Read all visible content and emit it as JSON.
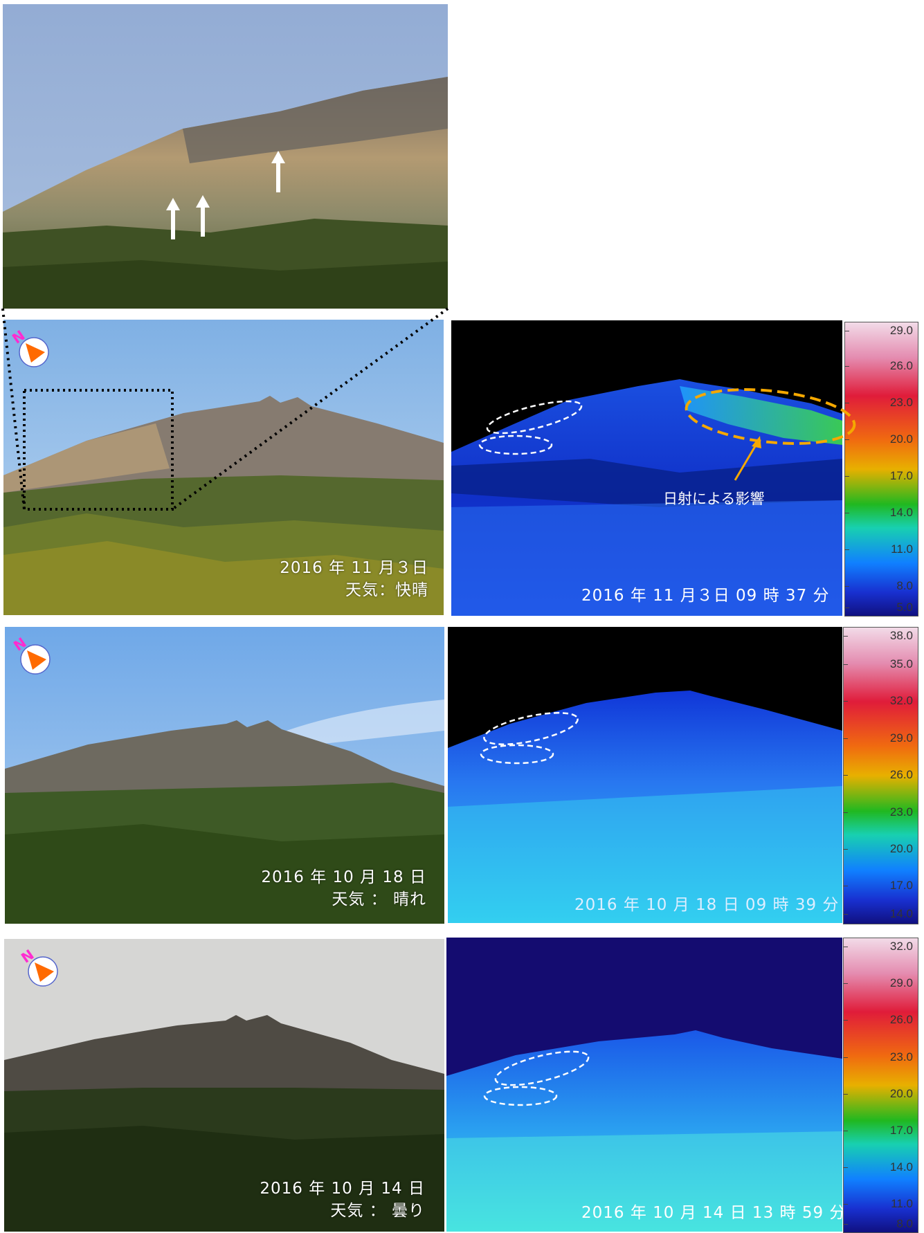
{
  "rows": [
    {
      "photo_caption": {
        "date": "2016 年 11 月３日",
        "weather": "天気：快晴"
      },
      "thermal_timestamp": "2016 年 11 月３日 09 時 37 分",
      "scale": [
        "29.0",
        "26.0",
        "23.0",
        "20.0",
        "17.0",
        "14.0",
        "11.0",
        "8.0",
        "5.0"
      ],
      "annotation": "日射による影響"
    },
    {
      "photo_caption": {
        "date": "2016 年 10 月 18 日",
        "weather": "天気 ： 晴れ"
      },
      "thermal_timestamp": "2016 年 10 月 18 日 09 時 39 分",
      "scale": [
        "38.0",
        "35.0",
        "32.0",
        "29.0",
        "26.0",
        "23.0",
        "20.0",
        "17.0",
        "14.0"
      ]
    },
    {
      "photo_caption": {
        "date": "2016 年 10 月 14 日",
        "weather": "天気 ： 曇り"
      },
      "thermal_timestamp": "2016 年 10 月 14 日 13 時 59 分",
      "scale": [
        "32.0",
        "29.0",
        "26.0",
        "23.0",
        "20.0",
        "17.0",
        "14.0",
        "11.0",
        "8.0"
      ]
    }
  ],
  "compass_letter": "N",
  "colors": {
    "compass_letter": "#ff2bd0",
    "compass_arrow": "#ff6a00",
    "sun_ellipse": "#f5a800",
    "marker_ellipse": "#ffffff"
  }
}
